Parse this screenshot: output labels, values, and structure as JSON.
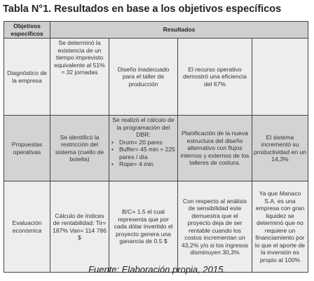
{
  "title": "Tabla N°1. Resultados en base a los objetivos específicos",
  "header": {
    "col1": "Objetivos específicos",
    "col2": "Resultados"
  },
  "rows": [
    {
      "label": "Diagnóstico de la empresa",
      "cells": [
        "Se determinó la existencia de un tiempo imprevisto equivalente al 51% ≈ 32 jornadas",
        "Diseño inadecuado para el taller de producción",
        "El recurso operativo demostró una eficiencia del 67%",
        ""
      ]
    },
    {
      "label": "Propuestas operativas",
      "cells": [
        "Se identificó la restricción del sistema (cuello de botella)",
        "",
        "Planificación de la nueva estructura del diseño alternativo con flujos internos y externos de los talleres de costura.",
        "El sistema incrementó su productividad en un 14,3%"
      ],
      "dbr": {
        "intro": "Se realizó el cálculo de la programación del DBR:",
        "bullets": [
          "Drum= 20 pares",
          "Buffer= 45 min ≈ 225 pares / día",
          "Rope= 4 min"
        ]
      }
    },
    {
      "label": "Evaluación económica",
      "cells": [
        "Cálculo de índices de rentabilidad: Tir= 187% Van= 114 786 $",
        "B/C= 1.5 el cual representa que por cada dólar invertido el proyecto genera una ganancia de 0.5 $",
        "Con respecto al análisis de sensibilidad este demuestra que el proyecto deja de ser rentable cuando los costos incrementan un 43,2% y/o si los ingresos disminuyen 30,3%",
        "Ya que Manaco S.A. es una empresa con gran liquidez se determinó que no requiere un financiamiento por lo que el aporte de la inversión es propio al 100%"
      ]
    }
  ],
  "source": "Fuente: Elaboración propia, 2015."
}
